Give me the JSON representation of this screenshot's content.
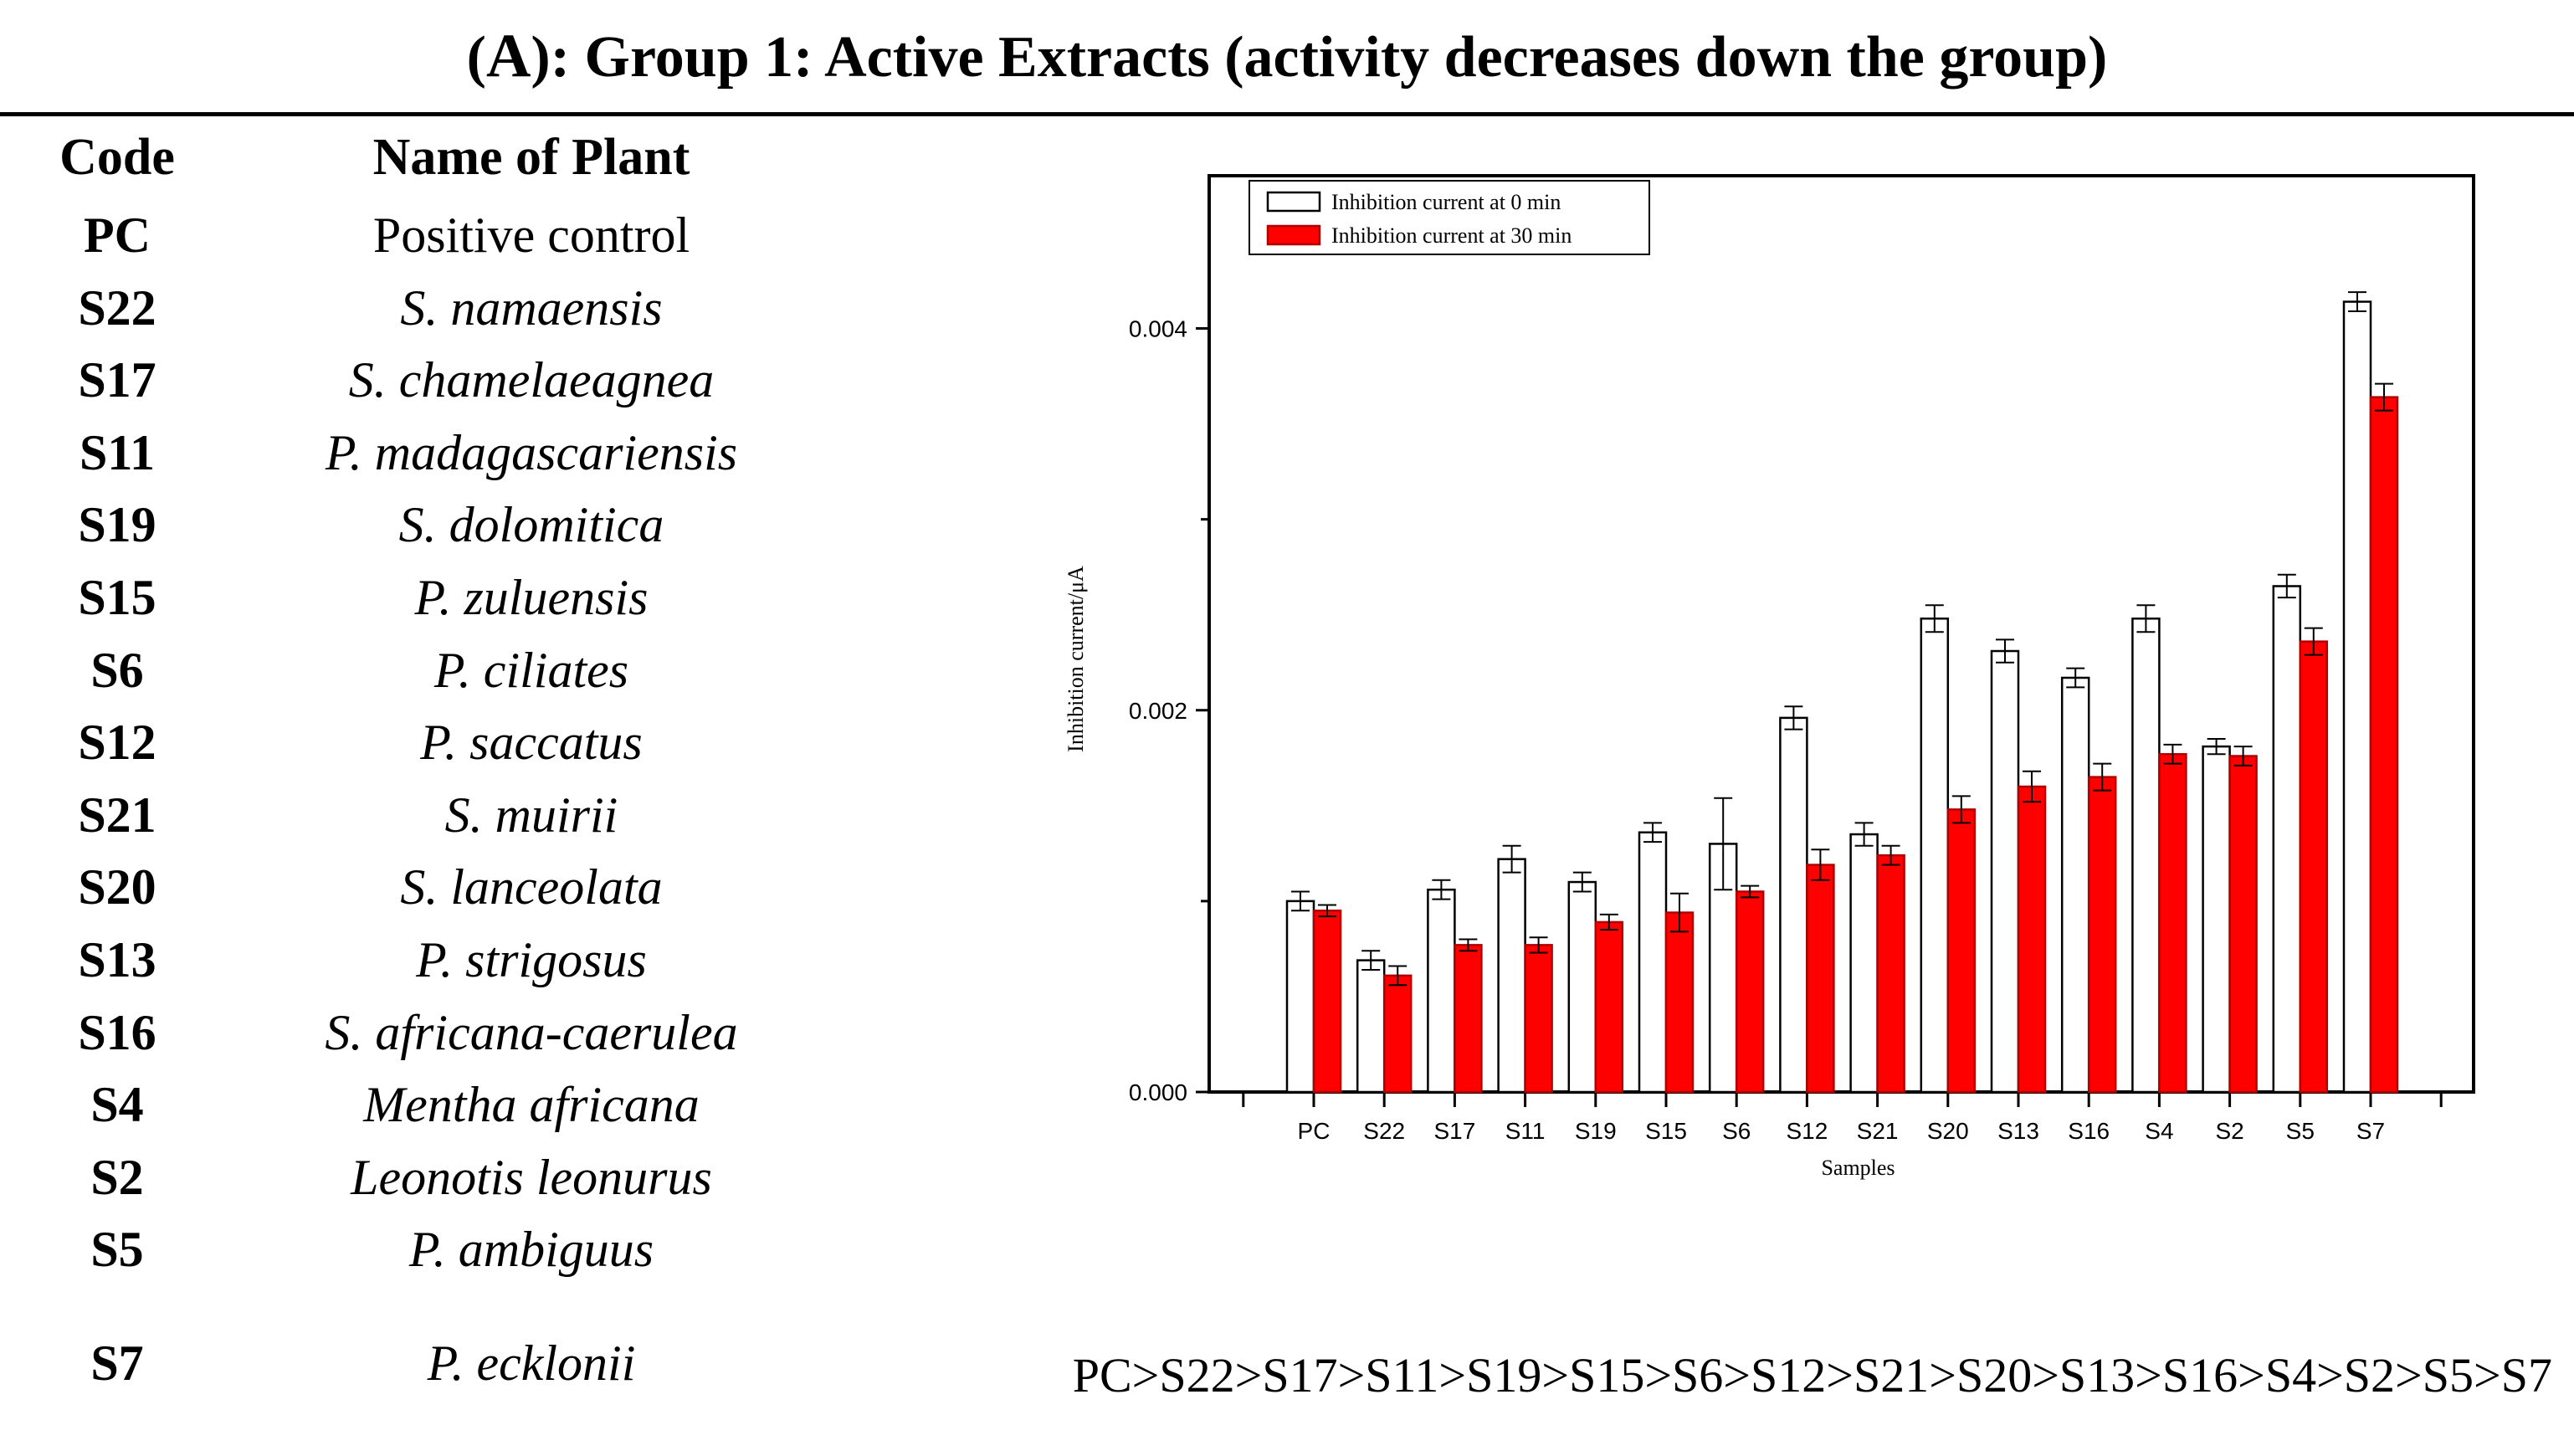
{
  "title": {
    "letter": "A",
    "prefix": "(",
    "suffix": "): Group 1: Active Extracts (activity decreases down the group)"
  },
  "table": {
    "headers": {
      "code": "Code",
      "name": "Name of Plant"
    },
    "rows": [
      {
        "code": "PC",
        "name": "Positive control",
        "italic": false
      },
      {
        "code": "S22",
        "name": "S. namaensis",
        "italic": true
      },
      {
        "code": "S17",
        "name": "S. chamelaeagnea",
        "italic": true
      },
      {
        "code": "S11",
        "name": "P. madagascariensis",
        "italic": true
      },
      {
        "code": "S19",
        "name": "S. dolomitica",
        "italic": true
      },
      {
        "code": "S15",
        "name": "P. zuluensis",
        "italic": true
      },
      {
        "code": "S6",
        "name": "P. ciliates",
        "italic": true
      },
      {
        "code": "S12",
        "name": "P. saccatus",
        "italic": true
      },
      {
        "code": "S21",
        "name": "S. muirii",
        "italic": true
      },
      {
        "code": "S20",
        "name": "S. lanceolata",
        "italic": true
      },
      {
        "code": "S13",
        "name": "P. strigosus",
        "italic": true
      },
      {
        "code": "S16",
        "name": "S. africana-caerulea",
        "italic": true
      },
      {
        "code": "S4",
        "name": "Mentha africana",
        "italic": true
      },
      {
        "code": "S2",
        "name": "Leonotis leonurus",
        "italic": true
      },
      {
        "code": "S5",
        "name": "P. ambiguus",
        "italic": true
      },
      {
        "code": "S7",
        "name": "P. ecklonii",
        "italic": true
      }
    ]
  },
  "chart_data": {
    "type": "bar",
    "title": "",
    "xlabel": "Samples",
    "ylabel": "Inhibition current/μA",
    "categories": [
      "PC",
      "S22",
      "S17",
      "S11",
      "S19",
      "S15",
      "S6",
      "S12",
      "S21",
      "S20",
      "S13",
      "S16",
      "S4",
      "S2",
      "S5",
      "S7"
    ],
    "series": [
      {
        "name": "Inhibition current at 0 min",
        "color": "#ffffff",
        "values": [
          0.001,
          0.00069,
          0.00106,
          0.00122,
          0.0011,
          0.00136,
          0.0013,
          0.00196,
          0.00135,
          0.00248,
          0.00231,
          0.00217,
          0.00248,
          0.00181,
          0.00265,
          0.00414
        ],
        "errors": [
          5e-05,
          5e-05,
          5e-05,
          7e-05,
          5e-05,
          5e-05,
          0.00024,
          6e-05,
          6e-05,
          7e-05,
          6e-05,
          5e-05,
          7e-05,
          4e-05,
          6e-05,
          5e-05
        ]
      },
      {
        "name": "Inhibition current at 30 min",
        "color": "#ff0000",
        "values": [
          0.00095,
          0.00061,
          0.00077,
          0.00077,
          0.00089,
          0.00094,
          0.00105,
          0.00119,
          0.00124,
          0.00148,
          0.0016,
          0.00165,
          0.00177,
          0.00176,
          0.00236,
          0.00364
        ],
        "errors": [
          3e-05,
          5e-05,
          3e-05,
          4e-05,
          4e-05,
          0.0001,
          3e-05,
          8e-05,
          5e-05,
          7e-05,
          8e-05,
          7e-05,
          5e-05,
          5e-05,
          7e-05,
          7e-05
        ]
      }
    ],
    "yticks": [
      0.0,
      0.002,
      0.004
    ],
    "ytick_labels": [
      "0.000",
      "0.002",
      "0.004"
    ],
    "ylim": [
      0.0,
      0.0048
    ],
    "legend_position": "top-left",
    "grid": false
  },
  "ordering": "PC>S22>S17>S11>S19>S15>S6>S12>S21>S20>S13>S16>S4>S2>S5>S7"
}
